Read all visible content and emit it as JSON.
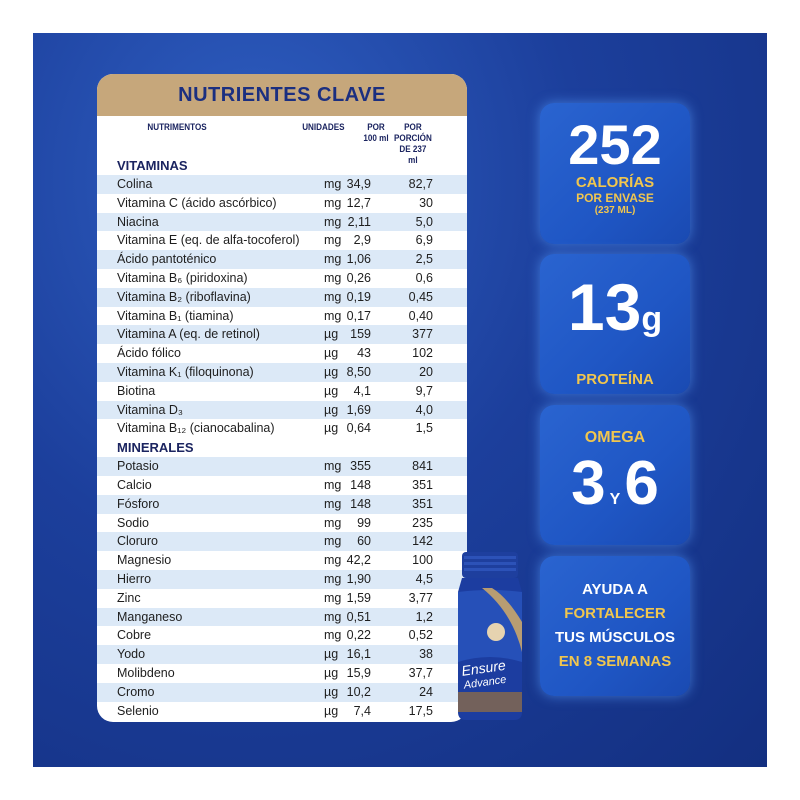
{
  "card": {
    "title": "NUTRIENTES CLAVE",
    "headers": {
      "nutrientes": "NUTRIMENTOS",
      "unidades": "UNIDADES",
      "por": "POR",
      "por_sub": "100 ml",
      "porcion": "POR PORCIÓN",
      "porcion_sub": "DE 237 ml"
    },
    "sections": [
      {
        "name": "VITAMINAS",
        "rows": [
          {
            "name": "Colina",
            "unit": "mg",
            "per100": "34,9",
            "perServing": "82,7"
          },
          {
            "name": "Vitamina C (ácido ascórbico)",
            "unit": "mg",
            "per100": "12,7",
            "perServing": "30"
          },
          {
            "name": "Niacina",
            "unit": "mg",
            "per100": "2,11",
            "perServing": "5,0"
          },
          {
            "name": "Vitamina E (eq. de alfa-tocoferol)",
            "unit": "mg",
            "per100": "2,9",
            "perServing": "6,9"
          },
          {
            "name": "Ácido pantoténico",
            "unit": "mg",
            "per100": "1,06",
            "perServing": "2,5"
          },
          {
            "name": "Vitamina B₆ (piridoxina)",
            "unit": "mg",
            "per100": "0,26",
            "perServing": "0,6"
          },
          {
            "name": "Vitamina B₂ (riboflavina)",
            "unit": "mg",
            "per100": "0,19",
            "perServing": "0,45"
          },
          {
            "name": "Vitamina B₁ (tiamina)",
            "unit": "mg",
            "per100": "0,17",
            "perServing": "0,40"
          },
          {
            "name": "Vitamina A (eq. de retinol)",
            "unit": "µg",
            "per100": "159",
            "perServing": "377"
          },
          {
            "name": "Ácido fólico",
            "unit": "µg",
            "per100": "43",
            "perServing": "102"
          },
          {
            "name": "Vitamina K₁ (filoquinona)",
            "unit": "µg",
            "per100": "8,50",
            "perServing": "20"
          },
          {
            "name": "Biotina",
            "unit": "µg",
            "per100": "4,1",
            "perServing": "9,7"
          },
          {
            "name": "Vitamina D₃",
            "unit": "µg",
            "per100": "1,69",
            "perServing": "4,0"
          },
          {
            "name": "Vitamina B₁₂ (cianocabalina)",
            "unit": "µg",
            "per100": "0,64",
            "perServing": "1,5"
          }
        ]
      },
      {
        "name": "MINERALES",
        "rows": [
          {
            "name": "Potasio",
            "unit": "mg",
            "per100": "355",
            "perServing": "841"
          },
          {
            "name": "Calcio",
            "unit": "mg",
            "per100": "148",
            "perServing": "351"
          },
          {
            "name": "Fósforo",
            "unit": "mg",
            "per100": "148",
            "perServing": "351"
          },
          {
            "name": "Sodio",
            "unit": "mg",
            "per100": "99",
            "perServing": "235"
          },
          {
            "name": "Cloruro",
            "unit": "mg",
            "per100": "60",
            "perServing": "142"
          },
          {
            "name": "Magnesio",
            "unit": "mg",
            "per100": "42,2",
            "perServing": "100"
          },
          {
            "name": "Hierro",
            "unit": "mg",
            "per100": "1,90",
            "perServing": "4,5"
          },
          {
            "name": "Zinc",
            "unit": "mg",
            "per100": "1,59",
            "perServing": "3,77"
          },
          {
            "name": "Manganeso",
            "unit": "mg",
            "per100": "0,51",
            "perServing": "1,2"
          },
          {
            "name": "Cobre",
            "unit": "mg",
            "per100": "0,22",
            "perServing": "0,52"
          },
          {
            "name": "Yodo",
            "unit": "µg",
            "per100": "16,1",
            "perServing": "38"
          },
          {
            "name": "Molibdeno",
            "unit": "µg",
            "per100": "15,9",
            "perServing": "37,7"
          },
          {
            "name": "Cromo",
            "unit": "µg",
            "per100": "10,2",
            "perServing": "24"
          },
          {
            "name": "Selenio",
            "unit": "µg",
            "per100": "7,4",
            "perServing": "17,5"
          }
        ]
      }
    ]
  },
  "tiles": {
    "calories": {
      "number": "252",
      "line1": "CALORÍAS",
      "line2": "POR ENVASE",
      "line3": "(237 ML)"
    },
    "protein": {
      "number": "13",
      "unit": "g",
      "label": "PROTEÍNA"
    },
    "omega": {
      "label": "OMEGA",
      "n1": "3",
      "y": "Y",
      "n2": "6"
    },
    "claim": {
      "line1": "AYUDA A",
      "line2": "FORTALECER",
      "line3": "TUS MÚSCULOS",
      "line4": "EN 8 SEMANAS"
    }
  },
  "bottle": {
    "brand1": "Ensure",
    "brand2": "Advance"
  },
  "colors": {
    "background": "#1c3f9c",
    "card_header": "#c6a77b",
    "stripe": "#dce9f7",
    "tile": "#1f56c4",
    "gold": "#f1c64e"
  }
}
